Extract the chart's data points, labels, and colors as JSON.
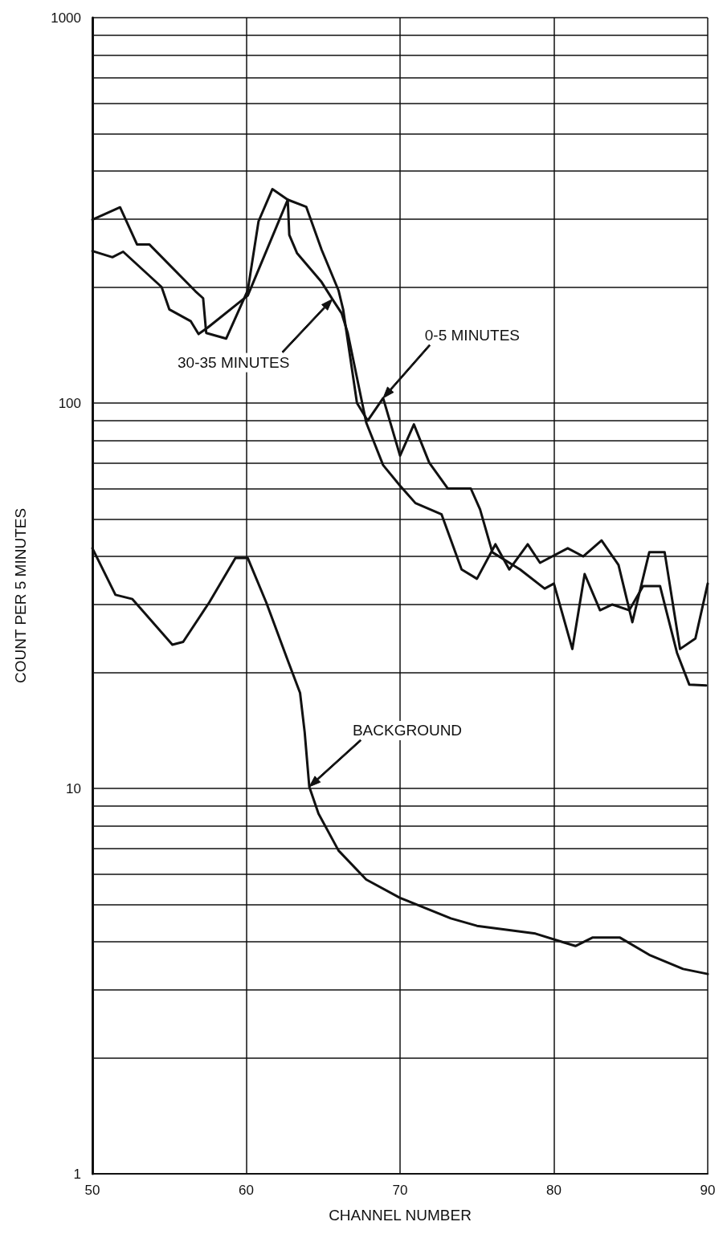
{
  "chart_data": {
    "type": "line",
    "xlabel": "CHANNEL NUMBER",
    "ylabel": "COUNT PER 5 MINUTES",
    "log": "y",
    "grid": true,
    "marker": "none",
    "line_style": "solid",
    "xlim": [
      50,
      90
    ],
    "xticks": [
      50,
      60,
      70,
      80,
      90
    ],
    "ylim": [
      1,
      1000
    ],
    "yticks": [
      1,
      {
        "value": 2,
        "label": null
      },
      {
        "value": 3,
        "label": null
      },
      {
        "value": 4,
        "label": null
      },
      {
        "value": 5,
        "label": null
      },
      {
        "value": 6,
        "label": null
      },
      {
        "value": 7,
        "label": null
      },
      {
        "value": 8,
        "label": null
      },
      {
        "value": 9,
        "label": null
      },
      10,
      {
        "value": 20,
        "label": null
      },
      {
        "value": 30,
        "label": null
      },
      {
        "value": 40,
        "label": null
      },
      {
        "value": 50,
        "label": null
      },
      {
        "value": 60,
        "label": null
      },
      {
        "value": 70,
        "label": null
      },
      {
        "value": 80,
        "label": null
      },
      {
        "value": 90,
        "label": null
      },
      100,
      {
        "value": 200,
        "label": null
      },
      {
        "value": 300,
        "label": null
      },
      {
        "value": 400,
        "label": null
      },
      {
        "value": 500,
        "label": null
      },
      {
        "value": 600,
        "label": null
      },
      {
        "value": 700,
        "label": null
      },
      {
        "value": 800,
        "label": null
      },
      {
        "value": 900,
        "label": null
      },
      1000
    ],
    "series": [
      {
        "color": "#111111",
        "x": [
          50,
          51.8,
          52.9,
          53.7,
          56.7,
          57.2,
          57.4,
          58.7,
          60.1,
          60.8,
          61.7,
          62.7,
          63.9,
          64.9,
          66,
          66.3,
          67.2,
          67.9,
          68.9,
          70,
          70.9,
          71.9,
          73.1,
          74.6,
          75.2,
          76,
          77.8,
          79.4,
          80,
          81.2,
          82,
          83,
          83.8,
          84.9,
          85.8,
          86.9,
          88,
          88.8,
          89.9
        ],
        "values": [
          299,
          322,
          258,
          258,
          195,
          187,
          152,
          147,
          196,
          296,
          359,
          337,
          323,
          250,
          196,
          175,
          100,
          90,
          103,
          73,
          88,
          70,
          60,
          60,
          53,
          41,
          37,
          33,
          34,
          23,
          36,
          29,
          30,
          29,
          33.5,
          33.5,
          22.5,
          18.6,
          18.5
        ]
      },
      {
        "color": "#111111",
        "x": [
          50,
          51.3,
          52,
          54.5,
          55,
          56.4,
          56.9,
          57.5,
          60.1,
          62.7,
          62.8,
          63.3,
          64.9,
          65.6,
          66.2,
          66.6,
          67.8,
          68.9,
          70,
          71,
          72.7,
          74,
          75,
          76.2,
          77.1,
          78.3,
          79.1,
          80.9,
          81.9,
          83.1,
          84.2,
          85.1,
          86.2,
          87.2,
          88.2,
          89.2,
          90
        ],
        "values": [
          248,
          239,
          247,
          200,
          175,
          163,
          151,
          157,
          190,
          337,
          273,
          245,
          206,
          186,
          171,
          152,
          89,
          69,
          61,
          55,
          51.4,
          37,
          35,
          43,
          37,
          43,
          38.5,
          42,
          40,
          44,
          38,
          27,
          41,
          41,
          23,
          24.5,
          34
        ]
      },
      {
        "color": "#111111",
        "x": [
          50,
          51.5,
          52.6,
          55.2,
          55.9,
          57.6,
          59.3,
          60.1,
          61.3,
          62.7,
          63.5,
          63.8,
          64.1,
          64.7,
          66,
          67.8,
          70,
          73.3,
          75,
          78.8,
          80.5,
          81.4,
          82.5,
          84.3,
          86.2,
          88.4,
          90
        ],
        "values": [
          42,
          31.8,
          31,
          23.6,
          24,
          30.4,
          39.6,
          39.6,
          30.4,
          21.5,
          17.7,
          14,
          10.1,
          8.6,
          6.9,
          5.8,
          5.2,
          4.6,
          4.4,
          4.2,
          4,
          3.9,
          4.1,
          4.1,
          3.7,
          3.4,
          3.3
        ]
      }
    ],
    "annotations": [
      "30-35 MINUTES",
      "0-5 MINUTES",
      "BACKGROUND"
    ]
  }
}
